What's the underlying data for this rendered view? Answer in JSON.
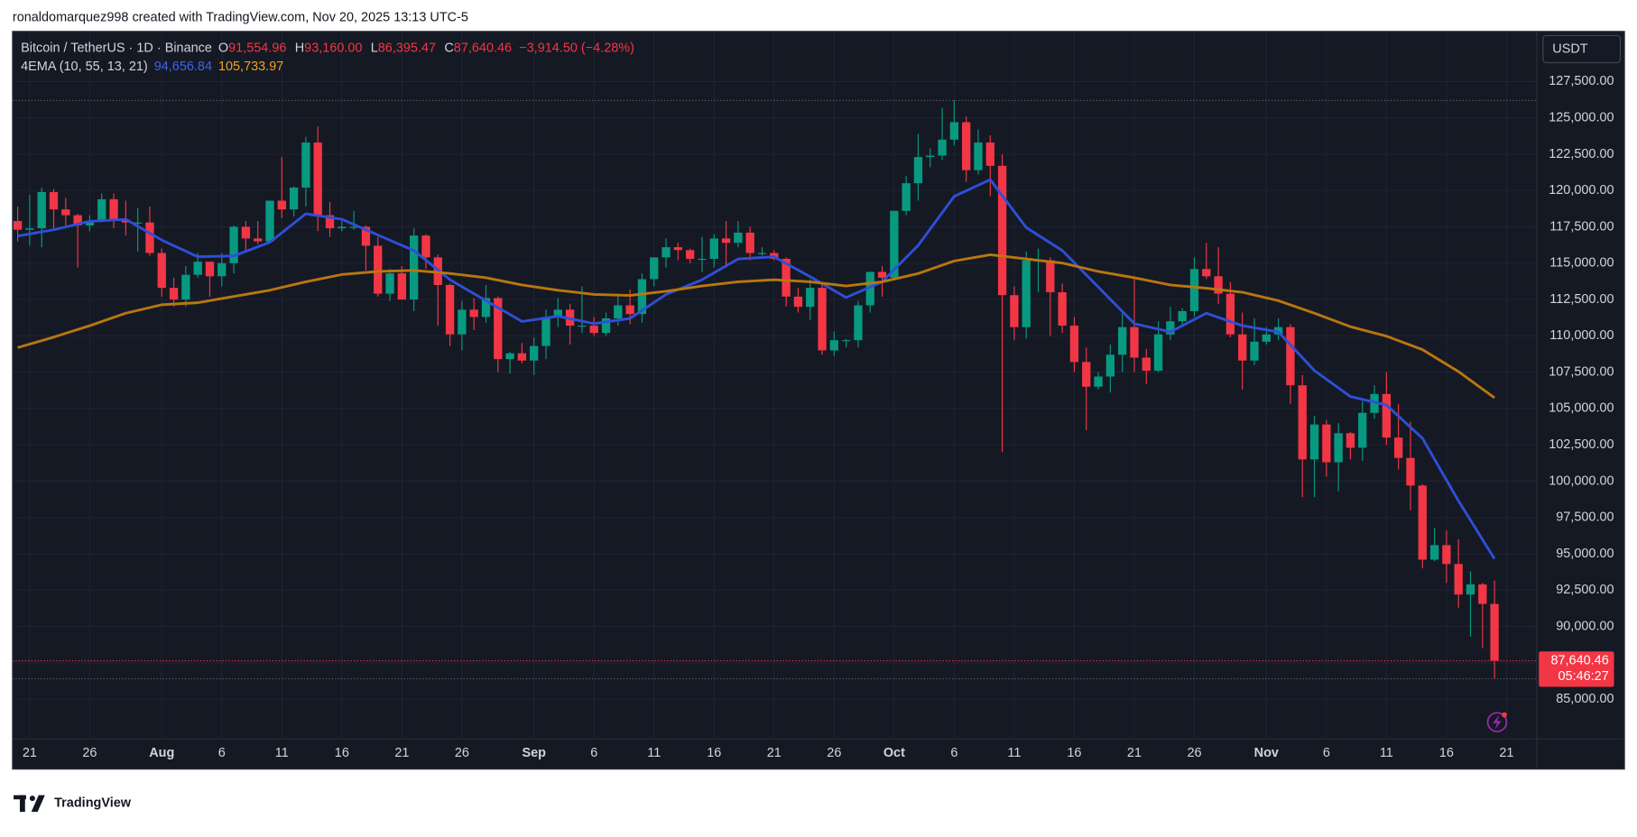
{
  "header": {
    "attribution": "ronaldomarquez998 created with TradingView.com, Nov 20, 2025 13:13 UTC-5"
  },
  "footer": {
    "logo": "TradingView"
  },
  "chart_data": {
    "type": "candlestick",
    "symbol": "Bitcoin / TetherUS · 1D · Binance",
    "ohlc_legend": [
      {
        "key": "O",
        "value": "91,554.96"
      },
      {
        "key": "H",
        "value": "93,160.00"
      },
      {
        "key": "L",
        "value": "86,395.47"
      },
      {
        "key": "C",
        "value": "87,640.46"
      }
    ],
    "change": "−3,914.50 (−4.28%)",
    "indicator": "4EMA (10, 55, 13, 21)",
    "currency": "USDT",
    "last_price_label": "87,640.46",
    "countdown": "05:46:27",
    "up_color": "#089981",
    "down_color": "#f23645",
    "open": [
      117900,
      117300,
      117400,
      119900,
      118700,
      118300,
      117600,
      117900,
      119400,
      118000,
      117800,
      117800,
      115700,
      113300,
      112500,
      114200,
      115100,
      114100,
      115000,
      117500,
      116700,
      116500,
      119300,
      118700,
      120200,
      123300,
      118300,
      117400,
      117500,
      117500,
      116200,
      112900,
      114300,
      112500,
      116900,
      115400,
      113500,
      110100,
      111800,
      111300,
      112600,
      108400,
      108800,
      108300,
      109300,
      111300,
      111800,
      110700,
      110700,
      110200,
      111200,
      112100,
      111500,
      113900,
      115400,
      116100,
      115900,
      115300,
      115300,
      116700,
      116400,
      117100,
      115700,
      115700,
      115300,
      112700,
      112000,
      113300,
      109000,
      109700,
      109700,
      112100,
      114400,
      114000,
      118600,
      120500,
      122300,
      122400,
      123500,
      124700,
      121400,
      123300,
      121700,
      112800,
      110600,
      115200,
      115200,
      113000,
      110700,
      108200,
      106500,
      107200,
      108700,
      110600,
      108500,
      107600,
      110100,
      111000,
      111700,
      114600,
      114100,
      112900,
      110100,
      108300,
      109600,
      110100,
      110600,
      106600,
      101500,
      103900,
      101300,
      103300,
      102300,
      104700,
      106000,
      103000,
      101600,
      99700,
      94600,
      95600,
      94300,
      92200,
      92900,
      91554.96
    ],
    "high": [
      118900,
      119700,
      120200,
      120100,
      119500,
      118400,
      118300,
      119800,
      119800,
      119300,
      118800,
      118900,
      116000,
      114000,
      114800,
      115700,
      115100,
      115700,
      117600,
      117900,
      117900,
      119300,
      122300,
      120300,
      123700,
      124400,
      119200,
      117900,
      118600,
      117600,
      116800,
      114600,
      114800,
      117400,
      117000,
      115600,
      113600,
      112400,
      112600,
      113500,
      112700,
      108900,
      109500,
      109900,
      111800,
      112600,
      112200,
      113400,
      111300,
      111600,
      112900,
      113200,
      114300,
      115400,
      116700,
      116400,
      116000,
      116800,
      117000,
      117900,
      117900,
      117500,
      116100,
      115900,
      115400,
      113300,
      113900,
      113500,
      110300,
      109800,
      112400,
      114400,
      114800,
      118600,
      121000,
      123900,
      122900,
      125700,
      126200,
      125100,
      124200,
      123800,
      122500,
      113400,
      115800,
      116000,
      115400,
      113600,
      111300,
      109200,
      107500,
      109400,
      111700,
      114000,
      109100,
      111000,
      112000,
      111900,
      115400,
      116400,
      116100,
      113700,
      111600,
      111200,
      110600,
      111200,
      110800,
      107300,
      104500,
      104200,
      104000,
      103400,
      105500,
      106600,
      107500,
      105300,
      104100,
      99800,
      96800,
      96600,
      96000,
      93800,
      93000,
      93160
    ],
    "low": [
      116500,
      116200,
      116100,
      117300,
      117400,
      114700,
      117200,
      117800,
      117400,
      116900,
      115800,
      115500,
      112700,
      112000,
      112000,
      114000,
      112700,
      113400,
      114300,
      115900,
      116300,
      116500,
      118100,
      118200,
      118900,
      117200,
      116800,
      117200,
      117300,
      114500,
      112700,
      112400,
      112500,
      111700,
      114600,
      110700,
      109300,
      109000,
      110400,
      110900,
      107500,
      107400,
      108100,
      107300,
      108400,
      110600,
      109400,
      110200,
      110000,
      110000,
      110700,
      110800,
      110900,
      113400,
      114700,
      115200,
      115000,
      114400,
      114700,
      114700,
      116100,
      115200,
      115500,
      115200,
      112000,
      111600,
      111100,
      108700,
      108600,
      109200,
      109200,
      111600,
      112700,
      113900,
      118300,
      119300,
      121600,
      122100,
      123100,
      120600,
      121100,
      119600,
      102000,
      109700,
      109800,
      113000,
      110000,
      110200,
      107500,
      103500,
      106300,
      106100,
      107500,
      107500,
      106700,
      107500,
      109700,
      110700,
      111300,
      113900,
      112200,
      109900,
      106300,
      108000,
      109400,
      109700,
      105300,
      98900,
      98900,
      100300,
      99300,
      101500,
      101400,
      104300,
      102500,
      100800,
      98000,
      94000,
      94500,
      93000,
      91300,
      89300,
      88500,
      86395.47
    ],
    "close": [
      117300,
      117400,
      119900,
      118700,
      118300,
      117600,
      117900,
      119400,
      118000,
      117800,
      117800,
      115700,
      113300,
      112500,
      114200,
      115100,
      114100,
      115000,
      117500,
      116700,
      116500,
      119300,
      118700,
      120200,
      123300,
      118300,
      117400,
      117500,
      117500,
      116200,
      112900,
      114300,
      112500,
      116900,
      115400,
      113500,
      110100,
      111800,
      111300,
      112600,
      108400,
      108800,
      108300,
      109300,
      111300,
      111800,
      110700,
      110700,
      110200,
      111200,
      112100,
      111500,
      113900,
      115400,
      116100,
      115900,
      115300,
      115300,
      116700,
      116400,
      117100,
      115700,
      115700,
      115300,
      112700,
      112000,
      113300,
      109000,
      109700,
      109700,
      112100,
      114400,
      114000,
      118600,
      120500,
      122300,
      122400,
      123500,
      124700,
      121400,
      123300,
      121700,
      112800,
      110600,
      115200,
      115200,
      113000,
      110700,
      108200,
      106500,
      107200,
      108700,
      110600,
      108500,
      107600,
      110100,
      111000,
      111700,
      114600,
      114100,
      112900,
      110100,
      108300,
      109600,
      110100,
      110600,
      106600,
      101500,
      103900,
      101300,
      103300,
      102300,
      104700,
      106000,
      103000,
      101600,
      99700,
      94600,
      95600,
      94300,
      92200,
      92900,
      91554.96,
      87640.46
    ],
    "series": [
      {
        "label": "94,656.84",
        "color": "#2e4fd8",
        "x": [
          0,
          3,
          6,
          9,
          12,
          15,
          18,
          21,
          24,
          27,
          30,
          33,
          36,
          39,
          42,
          45,
          48,
          51,
          54,
          57,
          60,
          63,
          66,
          69,
          72,
          75,
          78,
          81,
          84,
          87,
          90,
          93,
          96,
          99,
          102,
          105,
          108,
          111,
          114,
          117,
          120,
          123
        ],
        "values": [
          116870,
          117300,
          117880,
          118020,
          116590,
          115440,
          115500,
          116440,
          118400,
          118020,
          116940,
          115870,
          113860,
          112420,
          110990,
          111350,
          110840,
          111200,
          112850,
          113860,
          115290,
          115440,
          114070,
          112640,
          113720,
          116230,
          119600,
          120750,
          117450,
          115870,
          113360,
          110840,
          110270,
          111560,
          110700,
          110270,
          107610,
          105820,
          105240,
          102950,
          98640,
          94656.84
        ]
      },
      {
        "label": "105,733.97",
        "color": "#b8770f",
        "x": [
          0,
          3,
          6,
          9,
          12,
          15,
          18,
          21,
          24,
          27,
          30,
          33,
          36,
          39,
          42,
          45,
          48,
          51,
          54,
          57,
          60,
          63,
          66,
          69,
          72,
          75,
          78,
          81,
          84,
          87,
          90,
          93,
          96,
          99,
          102,
          105,
          108,
          111,
          114,
          117,
          120,
          123
        ],
        "values": [
          109190,
          109910,
          110700,
          111560,
          112140,
          112280,
          112710,
          113140,
          113720,
          114220,
          114430,
          114500,
          114290,
          114000,
          113500,
          113140,
          112850,
          112780,
          113070,
          113430,
          113720,
          113860,
          113720,
          113430,
          113720,
          114290,
          115150,
          115580,
          115290,
          115010,
          114430,
          114000,
          113500,
          113280,
          113000,
          112420,
          111560,
          110630,
          109980,
          109050,
          107540,
          105733.97
        ]
      }
    ],
    "xlim": [
      -0.43,
      126.52
    ],
    "xticks": [
      {
        "value": 1,
        "label": "21"
      },
      {
        "value": 6,
        "label": "26"
      },
      {
        "value": 12,
        "label": "Aug"
      },
      {
        "value": 17,
        "label": "6"
      },
      {
        "value": 22,
        "label": "11"
      },
      {
        "value": 27,
        "label": "16"
      },
      {
        "value": 32,
        "label": "21"
      },
      {
        "value": 37,
        "label": "26"
      },
      {
        "value": 43,
        "label": "Sep"
      },
      {
        "value": 48,
        "label": "6"
      },
      {
        "value": 53,
        "label": "11"
      },
      {
        "value": 58,
        "label": "16"
      },
      {
        "value": 63,
        "label": "21"
      },
      {
        "value": 68,
        "label": "26"
      },
      {
        "value": 73,
        "label": "Oct"
      },
      {
        "value": 78,
        "label": "6"
      },
      {
        "value": 83,
        "label": "11"
      },
      {
        "value": 88,
        "label": "16"
      },
      {
        "value": 93,
        "label": "21"
      },
      {
        "value": 98,
        "label": "26"
      },
      {
        "value": 104,
        "label": "Nov"
      },
      {
        "value": 109,
        "label": "6"
      },
      {
        "value": 114,
        "label": "11"
      },
      {
        "value": 119,
        "label": "16"
      },
      {
        "value": 124,
        "label": "21"
      }
    ],
    "ylim": [
      82270,
      130950
    ],
    "yticks": [
      {
        "value": 85000,
        "label": "85,000.00"
      },
      {
        "value": 87500,
        "label": "87,500.00"
      },
      {
        "value": 90000,
        "label": "90,000.00"
      },
      {
        "value": 92500,
        "label": "92,500.00"
      },
      {
        "value": 95000,
        "label": "95,000.00"
      },
      {
        "value": 97500,
        "label": "97,500.00"
      },
      {
        "value": 100000,
        "label": "100,000.00"
      },
      {
        "value": 102500,
        "label": "102,500.00"
      },
      {
        "value": 105000,
        "label": "105,000.00"
      },
      {
        "value": 107500,
        "label": "107,500.00"
      },
      {
        "value": 110000,
        "label": "110,000.00"
      },
      {
        "value": 112500,
        "label": "112,500.00"
      },
      {
        "value": 115000,
        "label": "115,000.00"
      },
      {
        "value": 117500,
        "label": "117,500.00"
      },
      {
        "value": 120000,
        "label": "120,000.00"
      },
      {
        "value": 122500,
        "label": "122,500.00"
      },
      {
        "value": 125000,
        "label": "125,000.00"
      },
      {
        "value": 127500,
        "label": "127,500.00"
      }
    ],
    "grid": true
  }
}
